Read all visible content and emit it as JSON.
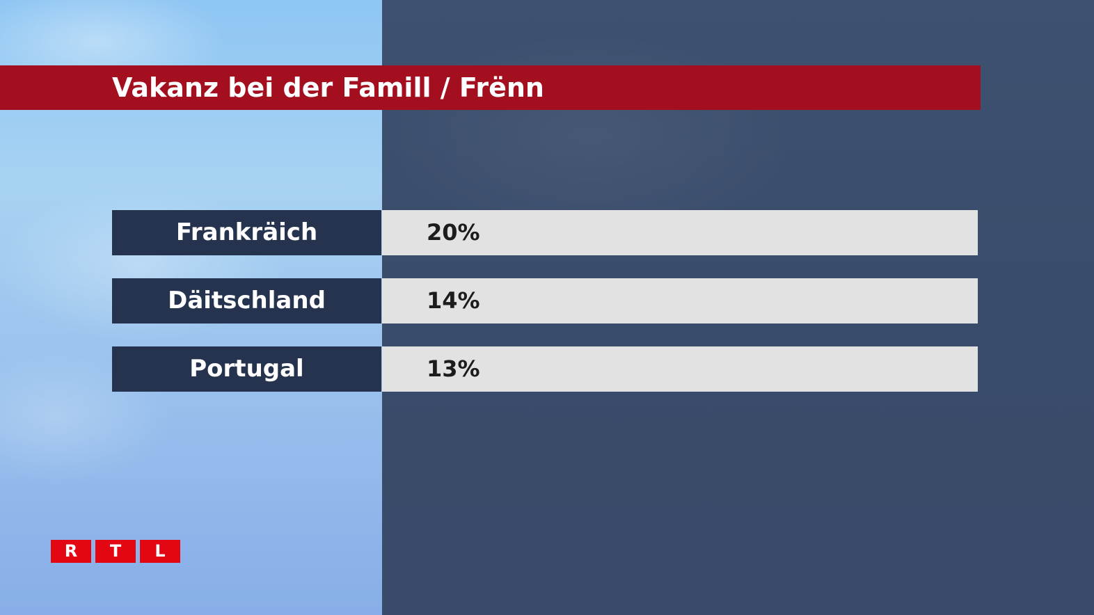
{
  "title": "Vakanz bei der Famill / Frënn",
  "rows": [
    {
      "label": "Frankräich",
      "value": "20%"
    },
    {
      "label": "Däitschland",
      "value": "14%"
    },
    {
      "label": "Portugal",
      "value": "13%"
    }
  ],
  "logo": {
    "letters": [
      "R",
      "T",
      "L"
    ]
  },
  "colors": {
    "title_bar": "#a30f1f",
    "label_bg": "#26334f",
    "value_bg": "#e2e2e2",
    "logo_red": "#e30613"
  }
}
